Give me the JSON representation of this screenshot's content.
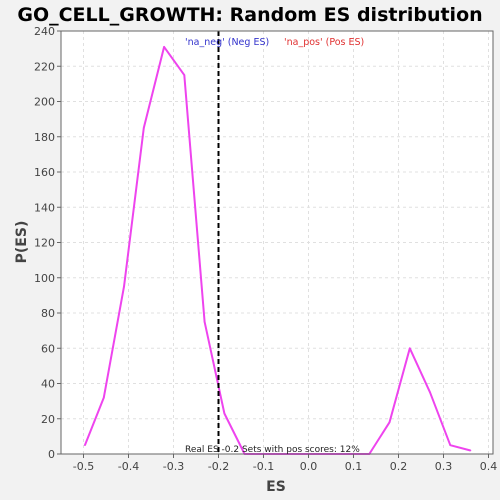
{
  "chart_data": {
    "type": "line",
    "title": "GO_CELL_GROWTH: Random ES distribution",
    "xlabel": "ES",
    "ylabel": "P(ES)",
    "xlim": [
      -0.55,
      0.41
    ],
    "ylim": [
      0,
      240
    ],
    "grid": true,
    "x_ticks": [
      -0.5,
      -0.4,
      -0.3,
      -0.2,
      -0.1,
      0.0,
      0.1,
      0.2,
      0.3,
      0.4
    ],
    "x_tick_labels": [
      "-0.5",
      "-0.4",
      "-0.3",
      "-0.2",
      "-0.1",
      "0.0",
      "0.1",
      "0.2",
      "0.3",
      "0.4"
    ],
    "y_ticks": [
      0,
      20,
      40,
      60,
      80,
      100,
      120,
      140,
      160,
      180,
      200,
      220,
      240
    ],
    "y_tick_labels": [
      "0",
      "20",
      "40",
      "60",
      "80",
      "100",
      "120",
      "140",
      "160",
      "180",
      "200",
      "220",
      "240"
    ],
    "legend": [
      {
        "label": "'na_neg' (Neg ES)",
        "color": "#3333cc"
      },
      {
        "label": "'na_pos' (Pos ES)",
        "color": "#e03030"
      }
    ],
    "legend_placement": "top-center",
    "series": [
      {
        "color": "#ee44ee",
        "x": [
          -0.497,
          -0.455,
          -0.41,
          -0.366,
          -0.321,
          -0.276,
          -0.231,
          -0.187,
          -0.142,
          0.135,
          0.18,
          0.225,
          0.27,
          0.315,
          0.36
        ],
        "y": [
          5,
          32,
          95,
          185,
          231,
          215,
          75,
          23,
          0,
          0,
          18,
          60,
          35,
          5,
          2
        ]
      }
    ],
    "real_es_line": {
      "x": -0.2,
      "color": "#000000",
      "style": "dashed"
    },
    "annotation": "Real ES -0.2   Sets with pos scores: 12%"
  }
}
